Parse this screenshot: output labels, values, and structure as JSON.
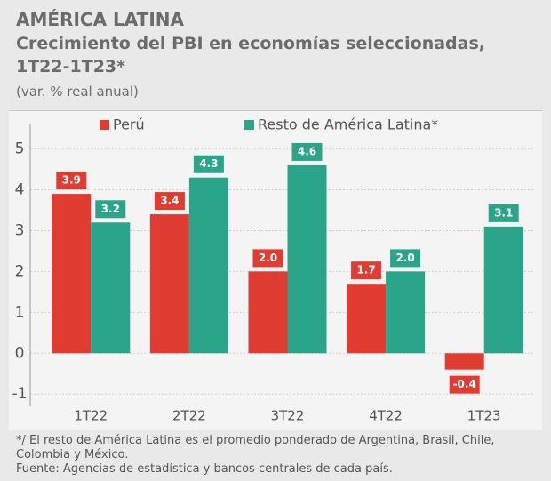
{
  "chart_data": {
    "type": "bar",
    "title": "AMÉRICA LATINA",
    "subtitle": "Crecimiento del PBI en economías seleccionadas, 1T22-1T23*",
    "unit_note": "(var. % real anual)",
    "categories": [
      "1T22",
      "2T22",
      "3T22",
      "4T22",
      "1T23"
    ],
    "series": [
      {
        "name": "Perú",
        "color": "#e03c31",
        "values": [
          3.9,
          3.4,
          2.0,
          1.7,
          -0.4
        ],
        "value_labels": [
          "3.9",
          "3.4",
          "2.0",
          "1.7",
          "-0.4"
        ]
      },
      {
        "name": "Resto de América Latina*",
        "color": "#2aa58a",
        "values": [
          3.2,
          4.3,
          4.6,
          2.0,
          3.1
        ],
        "value_labels": [
          "3.2",
          "4.3",
          "4.6",
          "2.0",
          "3.1"
        ]
      }
    ],
    "ylim": [
      -1.3,
      5.6
    ],
    "yticks": [
      5,
      4,
      3,
      2,
      1,
      0,
      -1
    ],
    "grid": true,
    "footnote": "*/ El resto de América Latina es el promedio ponderado de Argentina, Brasil, Chile, Colombia y México.",
    "source": "Fuente: Agencias de estadística y bancos centrales de cada país."
  }
}
